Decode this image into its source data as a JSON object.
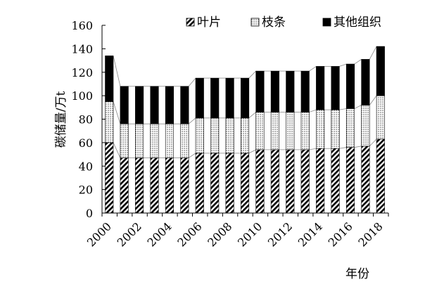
{
  "chart_data": {
    "type": "bar",
    "stacked": true,
    "xlabel": "年份",
    "ylabel": "碳储量/万t",
    "ylim": [
      0,
      160
    ],
    "yticks": [
      0,
      20,
      40,
      60,
      80,
      100,
      120,
      140,
      160
    ],
    "x_tick_labels": [
      "2000",
      "2002",
      "2004",
      "2006",
      "2008",
      "2010",
      "2012",
      "2014",
      "2016",
      "2018"
    ],
    "categories": [
      "2000",
      "2001",
      "2002",
      "2003",
      "2004",
      "2005",
      "2006",
      "2007",
      "2008",
      "2009",
      "2010",
      "2011",
      "2012",
      "2013",
      "2014",
      "2015",
      "2016",
      "2017",
      "2018"
    ],
    "legend_position": "top",
    "grid": false,
    "series": [
      {
        "name": "叶片",
        "pattern": "diagonal-hatch",
        "values": [
          60,
          47,
          47,
          47,
          47,
          47,
          51,
          51,
          51,
          51,
          54,
          54,
          54,
          54,
          55,
          55,
          56,
          57,
          63
        ]
      },
      {
        "name": "枝条",
        "pattern": "dots",
        "values": [
          35,
          29,
          29,
          29,
          29,
          29,
          30,
          30,
          30,
          30,
          32,
          32,
          32,
          32,
          33,
          33,
          33,
          35,
          37
        ]
      },
      {
        "name": "其他组织",
        "pattern": "solid-black",
        "values": [
          39,
          32,
          32,
          32,
          32,
          32,
          34,
          34,
          34,
          34,
          35,
          35,
          35,
          35,
          37,
          37,
          38,
          39,
          42
        ]
      }
    ]
  }
}
